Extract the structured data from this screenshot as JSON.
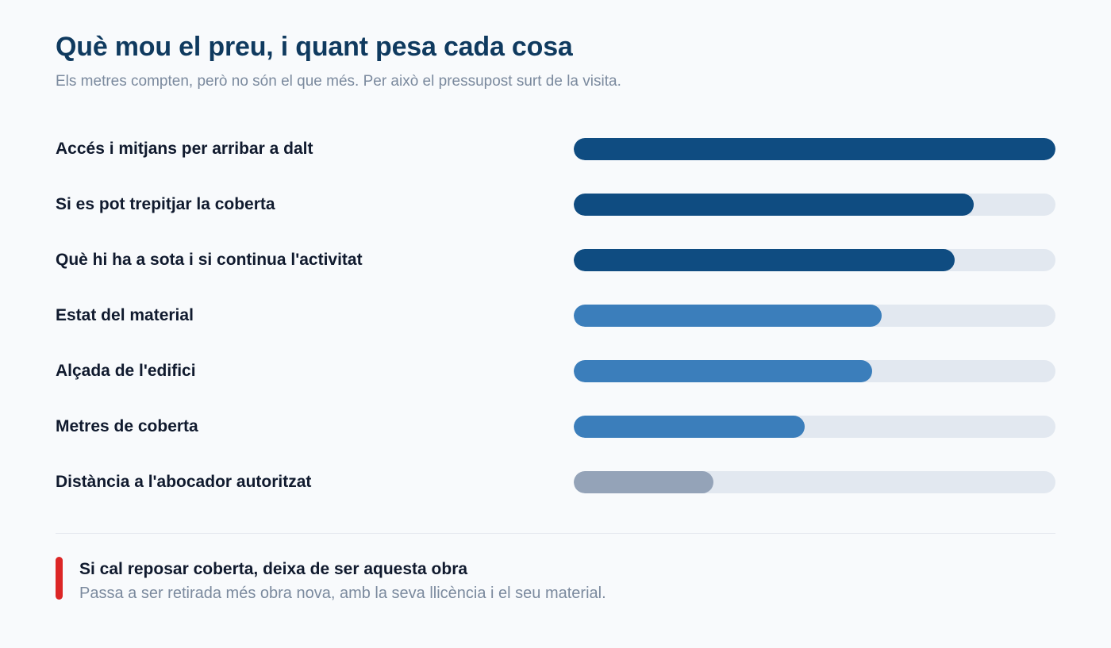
{
  "header": {
    "title": "Què mou el preu, i quant pesa cada cosa",
    "subtitle": "Els metres compten, però no són el que més. Per això el pressupost surt de la visita."
  },
  "colors": {
    "high": "#0f4c81",
    "medium": "#3b7ebb",
    "low": "#94a3b8",
    "track": "#e2e8f0",
    "accent": "#dc2626"
  },
  "chart_data": {
    "type": "bar",
    "orientation": "horizontal",
    "categories": [
      "Accés i mitjans per arribar a dalt",
      "Si es pot trepitjar la coberta",
      "Què hi ha a sota i si continua l'activitat",
      "Estat del material",
      "Alçada de l'edifici",
      "Metres de coberta",
      "Distància a l'abocador autoritzat"
    ],
    "values": [
      100,
      83,
      79,
      64,
      62,
      48,
      29
    ],
    "levels": [
      "high",
      "high",
      "high",
      "medium",
      "medium",
      "medium",
      "low"
    ],
    "xlim": [
      0,
      100
    ],
    "title": "",
    "xlabel": "",
    "ylabel": "",
    "grid": false
  },
  "note": {
    "title": "Si cal reposar coberta, deixa de ser aquesta obra",
    "text": "Passa a ser retirada més obra nova, amb la seva llicència i el seu material."
  }
}
